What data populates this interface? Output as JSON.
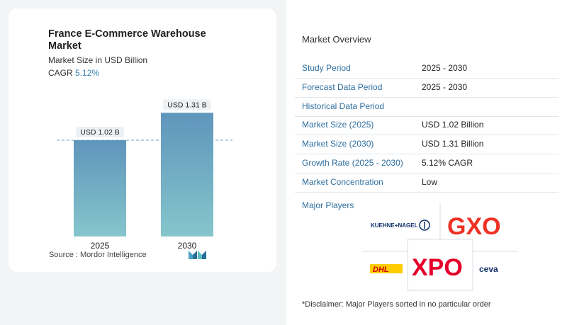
{
  "chart_data": {
    "type": "bar",
    "title": "France E-Commerce Warehouse Market",
    "subtitle": "Market Size in USD Billion",
    "cagr_label": "CAGR",
    "cagr_value": "5.12%",
    "categories": [
      "2025",
      "2030"
    ],
    "values": [
      1.02,
      1.31
    ],
    "data_labels": [
      "USD 1.02 B",
      "USD 1.31 B"
    ],
    "ylim": [
      0,
      1.35
    ],
    "colors": {
      "top": "#5f95bb",
      "bottom": "#85c6cc"
    }
  },
  "source": "Source : Mordor Intelligence",
  "overview": {
    "title": "Market Overview",
    "rows": [
      {
        "label": "Study Period",
        "value": "2025 - 2030"
      },
      {
        "label": "Forecast Data Period",
        "value": "2025 - 2030"
      },
      {
        "label": "Historical Data Period",
        "value": ""
      },
      {
        "label": "Market Size (2025)",
        "value": "USD 1.02 Billion"
      },
      {
        "label": "Market Size (2030)",
        "value": "USD 1.31 Billion"
      },
      {
        "label": "Growth Rate (2025 - 2030)",
        "value": "5.12% CAGR"
      },
      {
        "label": "Market Concentration",
        "value": "Low"
      }
    ]
  },
  "players": {
    "title": "Major Players",
    "logos": [
      "KUEHNE+NAGEL",
      "GXO",
      "DHL",
      "XPO",
      "ceva"
    ],
    "logo_colors": {
      "gxo": "#ee3124",
      "xpo": "#e4002b",
      "dhl_red": "#d40511",
      "dhl_yellow": "#ffcc00",
      "kn_blue": "#10306b",
      "ceva_red": "#e4002b"
    }
  },
  "disclaimer": "*Disclaimer: Major Players sorted in no particular order"
}
